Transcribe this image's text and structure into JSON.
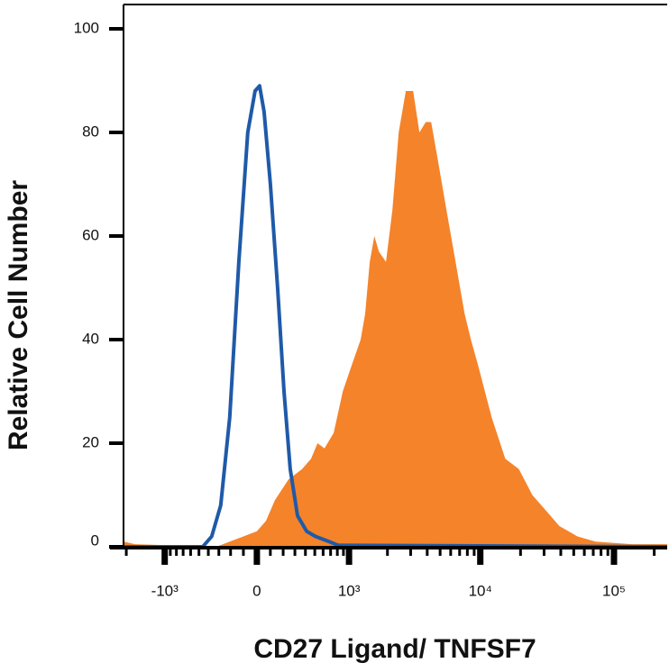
{
  "chart_data": {
    "type": "line",
    "xlabel": "CD27 Ligand/ TNFSF7",
    "ylabel": "Relative Cell Number",
    "xscale": "asinh",
    "asinh_width": 427,
    "xlim": [
      -2100,
      250000
    ],
    "xticks": [
      {
        "value": -1000,
        "label": "-10³"
      },
      0,
      {
        "value": 1000,
        "label": "10³"
      },
      {
        "value": 10000,
        "label": "10⁴"
      },
      {
        "value": 100000,
        "label": "10⁵"
      }
    ],
    "xminorticks": [
      -2000,
      -900,
      -800,
      -700,
      -600,
      -500,
      -400,
      -300,
      -200,
      -100,
      100,
      200,
      300,
      400,
      500,
      600,
      700,
      800,
      900,
      2000,
      3000,
      4000,
      5000,
      6000,
      7000,
      8000,
      9000,
      20000,
      30000,
      40000,
      50000,
      60000,
      70000,
      80000,
      90000,
      200000
    ],
    "ylim": [
      0,
      100
    ],
    "yticks": [
      0,
      20,
      40,
      60,
      80,
      100
    ],
    "series": [
      {
        "color": "#f5832a",
        "fill": true,
        "x": [
          -2100,
          -1718,
          -324,
          -207,
          -100,
          0,
          67,
          135,
          244,
          367,
          459,
          532,
          617,
          744,
          889,
          1050,
          1240,
          1345,
          1460,
          1585,
          1718,
          1950,
          2180,
          2435,
          2760,
          3130,
          3495,
          3900,
          4285,
          4780,
          5585,
          6530,
          7630,
          8510,
          9640,
          12170,
          15370,
          19430,
          24510,
          30960,
          39070,
          53330,
          72800,
          135700,
          250000
        ],
        "values": [
          1,
          0.5,
          0,
          1,
          2,
          3,
          5,
          9,
          13,
          15,
          17,
          20,
          19,
          22,
          30,
          35,
          40,
          45,
          55,
          60,
          57,
          55,
          65,
          80,
          88,
          88,
          80,
          82,
          82,
          75,
          65,
          55,
          45,
          40,
          35,
          25,
          17,
          15,
          10,
          7,
          4,
          2,
          1,
          0.5,
          0.5
        ]
      },
      {
        "color": "#1f5aa8",
        "fill": false,
        "x": [
          -2100,
          -459,
          -367,
          -283,
          -207,
          -135,
          -67,
          -13,
          20,
          53,
          100,
          156,
          207,
          259,
          324,
          412,
          508,
          679,
          813,
          250000
        ],
        "values": [
          0,
          0,
          2,
          8,
          25,
          55,
          80,
          88,
          89,
          84,
          70,
          50,
          30,
          15,
          6,
          3,
          2,
          1,
          0.3,
          0
        ]
      }
    ]
  }
}
